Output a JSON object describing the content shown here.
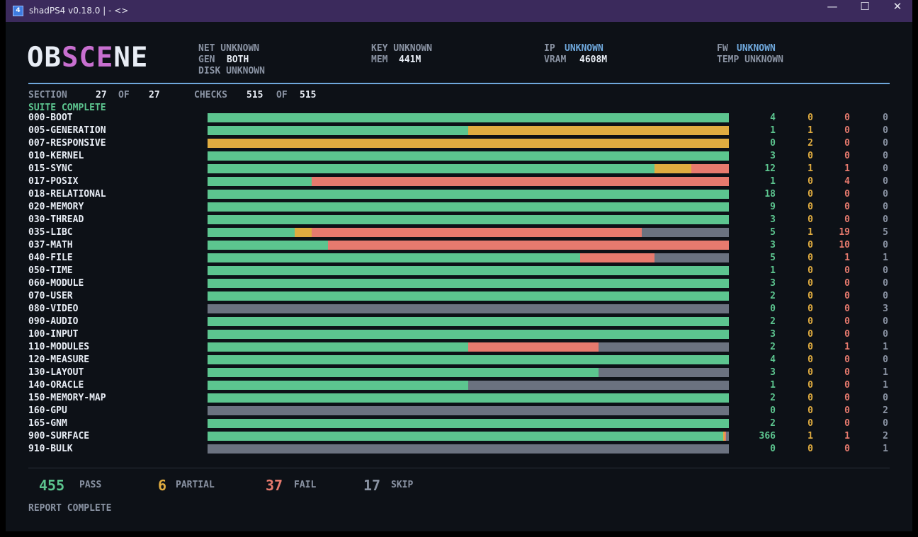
{
  "window": {
    "title": "shadPS4 v0.18.0 |  -  <>",
    "icon": "4"
  },
  "logo": {
    "part1": "OB",
    "part2": "SCE",
    "part3": "NE"
  },
  "header": {
    "net": "NET UNKNOWN",
    "gen_label": "GEN",
    "gen_value": "BOTH",
    "disk": "DISK UNKNOWN",
    "key": "KEY UNKNOWN",
    "mem_label": "MEM",
    "mem_value": "441M",
    "ip_label": "IP",
    "ip_value": "UNKNOWN",
    "vram_label": "VRAM",
    "vram_value": "4608M",
    "fw_label": "FW",
    "fw_value": "UNKNOWN",
    "temp": "TEMP UNKNOWN"
  },
  "progress": {
    "section_label": "SECTION",
    "section_current": "27",
    "of1": "OF",
    "section_total": "27",
    "checks_label": "CHECKS",
    "checks_current": "515",
    "of2": "OF",
    "checks_total": "515",
    "status": "SUITE COMPLETE"
  },
  "colors": {
    "pass": "#5cc58f",
    "partial": "#e0ac40",
    "fail": "#e77a6e",
    "skip": "#6b7280",
    "accent": "#6fa8dc",
    "logo_magenta": "#c86fd0"
  },
  "suites": [
    {
      "name": "000-BOOT",
      "pass": "4",
      "partial": "0",
      "fail": "0",
      "skip": "0"
    },
    {
      "name": "005-GENERATION",
      "pass": "1",
      "partial": "1",
      "fail": "0",
      "skip": "0"
    },
    {
      "name": "007-RESPONSIVE",
      "pass": "0",
      "partial": "2",
      "fail": "0",
      "skip": "0"
    },
    {
      "name": "010-KERNEL",
      "pass": "3",
      "partial": "0",
      "fail": "0",
      "skip": "0"
    },
    {
      "name": "015-SYNC",
      "pass": "12",
      "partial": "1",
      "fail": "1",
      "skip": "0"
    },
    {
      "name": "017-POSIX",
      "pass": "1",
      "partial": "0",
      "fail": "4",
      "skip": "0"
    },
    {
      "name": "018-RELATIONAL",
      "pass": "18",
      "partial": "0",
      "fail": "0",
      "skip": "0"
    },
    {
      "name": "020-MEMORY",
      "pass": "9",
      "partial": "0",
      "fail": "0",
      "skip": "0"
    },
    {
      "name": "030-THREAD",
      "pass": "3",
      "partial": "0",
      "fail": "0",
      "skip": "0"
    },
    {
      "name": "035-LIBC",
      "pass": "5",
      "partial": "1",
      "fail": "19",
      "skip": "5"
    },
    {
      "name": "037-MATH",
      "pass": "3",
      "partial": "0",
      "fail": "10",
      "skip": "0"
    },
    {
      "name": "040-FILE",
      "pass": "5",
      "partial": "0",
      "fail": "1",
      "skip": "1"
    },
    {
      "name": "050-TIME",
      "pass": "1",
      "partial": "0",
      "fail": "0",
      "skip": "0"
    },
    {
      "name": "060-MODULE",
      "pass": "3",
      "partial": "0",
      "fail": "0",
      "skip": "0"
    },
    {
      "name": "070-USER",
      "pass": "2",
      "partial": "0",
      "fail": "0",
      "skip": "0"
    },
    {
      "name": "080-VIDEO",
      "pass": "0",
      "partial": "0",
      "fail": "0",
      "skip": "3"
    },
    {
      "name": "090-AUDIO",
      "pass": "2",
      "partial": "0",
      "fail": "0",
      "skip": "0"
    },
    {
      "name": "100-INPUT",
      "pass": "3",
      "partial": "0",
      "fail": "0",
      "skip": "0"
    },
    {
      "name": "110-MODULES",
      "pass": "2",
      "partial": "0",
      "fail": "1",
      "skip": "1"
    },
    {
      "name": "120-MEASURE",
      "pass": "4",
      "partial": "0",
      "fail": "0",
      "skip": "0"
    },
    {
      "name": "130-LAYOUT",
      "pass": "3",
      "partial": "0",
      "fail": "0",
      "skip": "1"
    },
    {
      "name": "140-ORACLE",
      "pass": "1",
      "partial": "0",
      "fail": "0",
      "skip": "1"
    },
    {
      "name": "150-MEMORY-MAP",
      "pass": "2",
      "partial": "0",
      "fail": "0",
      "skip": "0"
    },
    {
      "name": "160-GPU",
      "pass": "0",
      "partial": "0",
      "fail": "0",
      "skip": "2"
    },
    {
      "name": "165-GNM",
      "pass": "2",
      "partial": "0",
      "fail": "0",
      "skip": "0"
    },
    {
      "name": "900-SURFACE",
      "pass": "366",
      "partial": "1",
      "fail": "1",
      "skip": "2"
    },
    {
      "name": "910-BULK",
      "pass": "0",
      "partial": "0",
      "fail": "0",
      "skip": "1"
    }
  ],
  "totals": {
    "pass": "455",
    "pass_label": "PASS",
    "partial": "6",
    "partial_label": "PARTIAL",
    "fail": "37",
    "fail_label": "FAIL",
    "skip": "17",
    "skip_label": "SKIP"
  },
  "footer": "REPORT COMPLETE"
}
